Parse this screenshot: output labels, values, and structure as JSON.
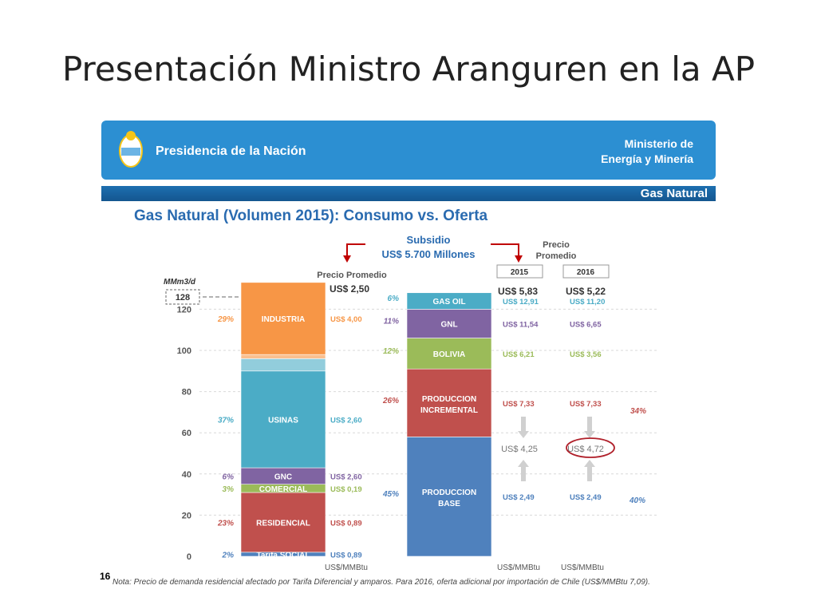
{
  "slide": {
    "title": "Presentación Ministro Aranguren en la AP",
    "page_number": "16"
  },
  "banner": {
    "left": "Presidencia de la Nación",
    "right_line1": "Ministerio de",
    "right_line2": "Energía y Minería",
    "band_label": "Gas Natural"
  },
  "colors": {
    "banner": "#2c8fd2",
    "band": "#1d6fb0",
    "title": "#2a6bb0",
    "industria": "#f79646",
    "usinas": "#4bacc6",
    "gnc": "#8064a2",
    "comercial": "#9bbb59",
    "residencial": "#c0504d",
    "social": "#4f81bd",
    "gas_oil": "#4bacc6",
    "gnl": "#8064a2",
    "bolivia": "#9bbb59",
    "incremental": "#c0504d",
    "base": "#4f81bd",
    "arrow": "#c00000"
  },
  "chart_data": {
    "type": "bar",
    "title": "Gas Natural (Volumen 2015): Consumo vs. Oferta",
    "ylabel": "MMm3/d",
    "ylim": [
      0,
      128
    ],
    "yticks": [
      0,
      20,
      40,
      60,
      80,
      100,
      120
    ],
    "ymax_label": "128",
    "subsidio_label": "Subsidio",
    "subsidio_value": "US$ 5.700  Millones",
    "consumo_header": "Precio Promedio",
    "consumo_avg": "US$ 2,50",
    "consumo_unit": "US$/MMBtu",
    "oferta_header_line1": "Precio",
    "oferta_header_line2": "Promedio",
    "years": [
      "2015",
      "2016"
    ],
    "oferta_avg": [
      "US$ 5,83",
      "US$ 5,22"
    ],
    "oferta_unit": "US$/MMBtu",
    "consumo": [
      {
        "name": "Tarifa SOCIAL",
        "value": 2,
        "share": "2%",
        "price": "US$ 0,89",
        "color_key": "social"
      },
      {
        "name": "RESIDENCIAL",
        "value": 29,
        "share": "23%",
        "price": "US$ 0,89",
        "color_key": "residencial"
      },
      {
        "name": "COMERCIAL",
        "value": 4,
        "share": "3%",
        "price": "US$ 0,19",
        "color_key": "comercial"
      },
      {
        "name": "GNC",
        "value": 8,
        "share": "6%",
        "price": "US$ 2,60",
        "color_key": "gnc"
      },
      {
        "name": "USINAS",
        "value": 47,
        "share": "37%",
        "price": "US$ 2,60",
        "color_key": "usinas"
      },
      {
        "name": "",
        "value": 6,
        "share": "",
        "price": "",
        "color_key": "usinas_light"
      },
      {
        "name": "",
        "value": 2,
        "share": "",
        "price": "",
        "color_key": "industria_light"
      },
      {
        "name": "INDUSTRIA",
        "value": 35,
        "share": "29%",
        "price": "US$ 4,00",
        "color_key": "industria"
      }
    ],
    "oferta": [
      {
        "name": "PRODUCCION\nBASE",
        "value": 58,
        "share": "45%",
        "price_2015": "US$ 2,49",
        "price_2016": "US$ 2,49",
        "color_key": "base"
      },
      {
        "name": "PRODUCCION\nINCREMENTAL",
        "value": 33,
        "share": "26%",
        "price_2015": "US$ 7,33",
        "price_2016": "US$ 7,33",
        "color_key": "incremental"
      },
      {
        "name": "BOLIVIA",
        "value": 15,
        "share": "12%",
        "price_2015": "US$ 6,21",
        "price_2016": "US$ 3,56",
        "color_key": "bolivia"
      },
      {
        "name": "GNL",
        "value": 14,
        "share": "11%",
        "price_2015": "US$ 11,54",
        "price_2016": "US$ 6,65",
        "color_key": "gnl"
      },
      {
        "name": "GAS OIL",
        "value": 8,
        "share": "6%",
        "price_2015": "US$ 12,91",
        "price_2016": "US$ 11,20",
        "color_key": "gas_oil"
      }
    ],
    "mid_price_2015": "US$ 4,25",
    "mid_price_2016": "US$ 4,72",
    "group_share_top": "34%",
    "group_share_bottom": "40%",
    "note": "Nota: Precio de demanda residencial afectado por Tarifa Diferencial y amparos. Para 2016, oferta adicional por importación de Chile (US$/MMBtu 7,09)."
  }
}
